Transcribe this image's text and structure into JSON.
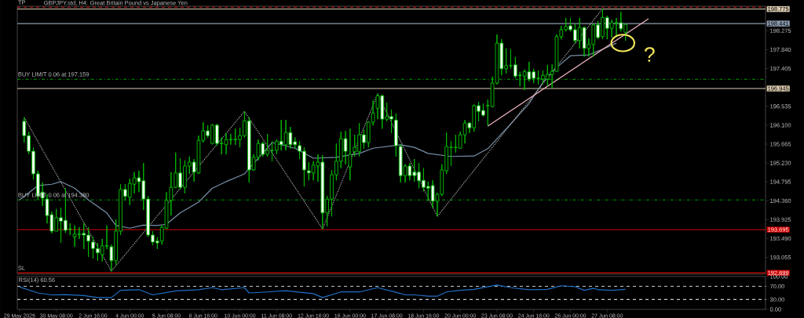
{
  "chart_data": [
    {
      "type": "candlestick",
      "title": "GBPJPY.std, H4:  Great Britain Pound vs Japanese Yen",
      "categories": [
        null,
        null,
        null,
        null,
        null,
        null,
        null,
        null,
        null,
        null,
        null,
        null,
        null,
        null,
        null,
        null,
        null,
        null,
        null,
        null,
        null,
        null,
        null,
        null,
        null,
        null,
        null,
        null,
        null,
        null,
        null,
        null,
        null,
        null,
        null,
        null,
        null,
        null,
        null,
        null,
        null,
        null,
        null,
        null,
        null,
        null,
        null,
        null,
        null,
        null,
        null,
        null,
        null,
        null,
        null,
        null,
        null,
        null,
        null,
        null,
        null,
        null,
        null,
        null,
        null,
        null,
        null,
        null,
        null,
        null,
        null,
        null,
        null,
        null,
        null,
        null,
        null,
        null,
        null,
        null,
        null,
        null,
        null,
        null,
        null,
        null,
        null,
        null,
        null,
        null,
        null,
        null,
        null,
        null,
        null,
        null,
        null,
        null,
        null,
        null,
        null,
        null,
        null,
        null,
        null,
        null,
        null,
        null,
        null,
        null,
        null,
        null,
        null,
        null,
        null,
        null,
        null,
        null,
        null,
        null,
        null,
        null,
        null,
        null,
        null,
        null,
        null,
        null,
        null,
        null,
        null,
        null,
        null,
        null,
        null,
        null,
        null,
        null,
        null,
        null,
        null,
        null,
        null,
        null,
        null,
        null,
        null,
        null,
        null,
        null,
        null,
        null,
        null,
        null,
        null,
        null,
        null,
        null,
        null,
        null,
        null,
        null,
        null
      ],
      "ohlc": [
        null,
        [
          196.19,
          196.28,
          195.7,
          195.86
        ],
        [
          195.86,
          195.95,
          195.43,
          195.5
        ],
        [
          195.5,
          195.59,
          194.85,
          194.98
        ],
        [
          194.98,
          195.05,
          194.38,
          194.47
        ],
        [
          194.56,
          194.78,
          194.24,
          194.42
        ],
        [
          194.4,
          194.51,
          193.84,
          194.02
        ],
        [
          194.04,
          194.11,
          193.61,
          193.66
        ],
        [
          193.66,
          194.17,
          193.66,
          193.97
        ],
        [
          193.97,
          194.2,
          193.39,
          193.89
        ],
        [
          193.91,
          194.65,
          193.62,
          193.68
        ],
        [
          193.71,
          193.84,
          193.57,
          193.7
        ],
        [
          193.53,
          193.79,
          193.3,
          193.59
        ],
        [
          193.59,
          193.75,
          193.48,
          193.59
        ],
        [
          193.61,
          193.84,
          193.25,
          193.57
        ],
        [
          193.57,
          193.75,
          193.07,
          193.43
        ],
        [
          193.41,
          193.53,
          193.03,
          193.26
        ],
        [
          193.26,
          193.39,
          192.98,
          193.16
        ],
        [
          193.12,
          193.48,
          192.96,
          193.32
        ],
        [
          193.32,
          193.79,
          193.25,
          193.32
        ],
        [
          193.3,
          193.35,
          192.74,
          192.98
        ],
        [
          192.98,
          193.93,
          192.89,
          193.66
        ],
        [
          193.66,
          194.74,
          193.57,
          194.62
        ],
        [
          194.62,
          194.74,
          194.38,
          194.46
        ],
        [
          194.44,
          194.87,
          194.26,
          194.76
        ],
        [
          194.74,
          195.02,
          194.53,
          194.89
        ],
        [
          194.89,
          195.05,
          194.56,
          194.8
        ],
        [
          194.82,
          195.23,
          194.15,
          194.4
        ],
        [
          194.4,
          194.47,
          193.53,
          193.57
        ],
        [
          193.57,
          193.66,
          193.34,
          193.41
        ],
        [
          193.43,
          193.52,
          193.25,
          193.39
        ],
        [
          193.43,
          193.79,
          193.35,
          193.75
        ],
        [
          193.73,
          194.56,
          193.71,
          194.37
        ],
        [
          194.37,
          195.02,
          194.02,
          194.67
        ],
        [
          194.67,
          195.47,
          194.65,
          195.0
        ],
        [
          195.0,
          195.34,
          194.62,
          194.67
        ],
        [
          194.67,
          195.29,
          194.53,
          195.16
        ],
        [
          195.16,
          195.38,
          194.98,
          195.25
        ],
        [
          195.25,
          195.32,
          194.8,
          195.02
        ],
        [
          195.0,
          195.86,
          194.98,
          195.75
        ],
        [
          195.75,
          196.17,
          195.7,
          195.97
        ],
        [
          195.97,
          196.1,
          195.81,
          195.86
        ],
        [
          195.68,
          196.13,
          195.66,
          196.1
        ],
        [
          196.1,
          196.13,
          195.63,
          195.68
        ],
        [
          195.68,
          195.82,
          195.43,
          195.68
        ],
        [
          195.65,
          195.92,
          195.43,
          195.77
        ],
        [
          195.77,
          195.9,
          195.65,
          195.77
        ],
        [
          195.77,
          196.02,
          195.65,
          195.77
        ],
        [
          195.77,
          196.04,
          195.59,
          195.86
        ],
        [
          195.86,
          196.42,
          195.81,
          196.2
        ],
        [
          196.2,
          196.28,
          194.78,
          195.07
        ],
        [
          195.07,
          195.43,
          195.05,
          195.36
        ],
        [
          195.36,
          195.77,
          195.29,
          195.68
        ],
        [
          195.68,
          195.72,
          195.38,
          195.43
        ],
        [
          195.43,
          195.9,
          195.38,
          195.52
        ],
        [
          195.52,
          195.73,
          195.27,
          195.52
        ],
        [
          195.52,
          195.77,
          195.43,
          195.73
        ],
        [
          195.73,
          196.22,
          195.52,
          195.65
        ],
        [
          195.65,
          196.22,
          195.52,
          195.93
        ],
        [
          195.93,
          196.06,
          195.56,
          195.65
        ],
        [
          195.72,
          195.82,
          195.56,
          195.65
        ],
        [
          195.63,
          195.73,
          195.32,
          195.5
        ],
        [
          195.5,
          195.59,
          194.69,
          195.07
        ],
        [
          195.05,
          195.25,
          194.83,
          195.0
        ],
        [
          195.0,
          195.27,
          194.83,
          195.18
        ],
        [
          195.16,
          195.43,
          194.8,
          195.25
        ],
        [
          195.25,
          195.41,
          193.71,
          194.08
        ],
        [
          194.08,
          194.47,
          193.77,
          194.4
        ],
        [
          194.4,
          195.07,
          194.0,
          194.96
        ],
        [
          194.96,
          195.68,
          194.83,
          195.27
        ],
        [
          195.27,
          195.95,
          195.11,
          195.79
        ],
        [
          195.79,
          195.97,
          195.2,
          195.5
        ],
        [
          195.14,
          196.02,
          194.83,
          195.43
        ],
        [
          195.49,
          195.88,
          195.38,
          195.59
        ],
        [
          195.49,
          196.15,
          195.38,
          195.88
        ],
        [
          195.88,
          196.0,
          195.56,
          195.7
        ],
        [
          195.7,
          196.19,
          195.59,
          196.17
        ],
        [
          196.17,
          196.67,
          196.1,
          196.38
        ],
        [
          196.49,
          196.82,
          196.24,
          196.78
        ],
        [
          196.78,
          196.8,
          196.02,
          196.24
        ],
        [
          196.24,
          196.62,
          196.19,
          196.3
        ],
        [
          196.3,
          196.46,
          195.92,
          196.24
        ],
        [
          196.22,
          196.37,
          195.38,
          195.63
        ],
        [
          195.61,
          195.65,
          194.78,
          194.94
        ],
        [
          194.94,
          195.2,
          194.78,
          195.16
        ],
        [
          195.16,
          195.23,
          194.83,
          194.94
        ],
        [
          195.02,
          195.32,
          194.8,
          194.94
        ],
        [
          195.02,
          195.23,
          194.65,
          194.82
        ],
        [
          194.83,
          195.11,
          194.58,
          194.67
        ],
        [
          194.69,
          194.8,
          194.35,
          194.65
        ],
        [
          194.71,
          194.83,
          194.2,
          194.35
        ],
        [
          194.35,
          194.54,
          194.0,
          194.51
        ],
        [
          194.51,
          195.2,
          194.47,
          195.07
        ],
        [
          195.05,
          195.93,
          194.98,
          195.61
        ],
        [
          195.59,
          195.73,
          195.16,
          195.59
        ],
        [
          195.59,
          195.88,
          195.47,
          195.59
        ],
        [
          195.57,
          195.95,
          195.56,
          195.88
        ],
        [
          195.88,
          196.22,
          195.68,
          196.15
        ],
        [
          196.15,
          196.17,
          195.92,
          196.04
        ],
        [
          196.04,
          196.58,
          195.95,
          196.55
        ],
        [
          196.55,
          196.64,
          196.19,
          196.42
        ],
        [
          196.44,
          196.6,
          196.3,
          196.33
        ],
        [
          196.55,
          196.69,
          196.1,
          196.55
        ],
        [
          196.53,
          197.22,
          196.51,
          197.07
        ],
        [
          197.07,
          198.19,
          197.04,
          197.99
        ],
        [
          197.99,
          198.08,
          197.25,
          197.4
        ],
        [
          197.4,
          197.87,
          197.29,
          197.47
        ],
        [
          197.47,
          197.85,
          197.4,
          197.47
        ],
        [
          197.49,
          197.67,
          197.18,
          197.23
        ],
        [
          197.25,
          197.33,
          197.0,
          197.25
        ],
        [
          197.23,
          197.38,
          196.91,
          197.33
        ],
        [
          197.33,
          197.56,
          197.11,
          197.16
        ],
        [
          197.33,
          197.4,
          197.07,
          197.18
        ],
        [
          197.18,
          197.36,
          197.04,
          197.18
        ],
        [
          197.16,
          197.36,
          197.04,
          197.25
        ],
        [
          197.16,
          197.49,
          197.0,
          197.27
        ],
        [
          197.27,
          197.5,
          196.96,
          197.34
        ],
        [
          197.34,
          198.19,
          197.33,
          198.14
        ],
        [
          198.14,
          198.39,
          198.08,
          198.3
        ],
        [
          198.3,
          198.57,
          198.26,
          198.37
        ],
        [
          198.39,
          198.57,
          198.26,
          198.3
        ],
        [
          198.3,
          198.44,
          197.99,
          198.05
        ],
        [
          198.05,
          198.57,
          197.87,
          198.35
        ],
        [
          198.35,
          198.37,
          197.68,
          197.87
        ],
        [
          197.87,
          198.1,
          197.68,
          197.96
        ],
        [
          197.96,
          198.44,
          197.68,
          198.41
        ],
        [
          198.41,
          198.5,
          198.08,
          198.12
        ],
        [
          198.14,
          198.78,
          198.08,
          198.58
        ],
        [
          198.58,
          198.62,
          198.08,
          198.33
        ],
        [
          198.33,
          198.53,
          198.12,
          198.46
        ],
        [
          198.46,
          198.57,
          198.17,
          198.46
        ],
        [
          198.46,
          198.71,
          198.26,
          198.32
        ],
        [
          198.24,
          198.44,
          198.05,
          198.42
        ],
        null,
        null,
        null,
        null,
        null,
        null,
        null,
        null,
        null,
        null,
        null,
        null,
        null,
        null,
        null,
        null,
        null,
        null,
        null,
        null,
        null,
        null,
        null,
        null,
        null,
        null,
        null,
        null,
        null,
        null
      ],
      "color": "#00c000",
      "colors": [
        null,
        "#ffffff",
        "#ffffff",
        "#ffffff",
        "#ffffff",
        "#ffffff",
        "#ffffff",
        "#ffffff",
        "#000000",
        "#ffffff",
        "#ffffff",
        "#ffffff",
        "#000000",
        "#000000",
        "#ffffff",
        "#ffffff",
        "#ffffff",
        "#ffffff",
        "#000000",
        "#000000",
        "#ffffff",
        "#000000",
        "#000000",
        "#ffffff",
        "#000000",
        "#000000",
        "#ffffff",
        "#ffffff",
        "#ffffff",
        "#ffffff",
        "#ffffff",
        "#000000",
        "#000000",
        "#000000",
        "#000000",
        "#ffffff",
        "#000000",
        "#000000",
        "#ffffff",
        "#000000",
        "#000000",
        "#ffffff",
        "#000000",
        "#ffffff",
        "#000000",
        "#000000",
        "#000000",
        "#000000",
        "#000000",
        "#000000",
        "#ffffff",
        "#000000",
        "#000000",
        "#ffffff",
        "#000000",
        "#000000",
        "#000000",
        "#ffffff",
        "#000000",
        "#ffffff",
        "#ffffff",
        "#ffffff",
        "#ffffff",
        "#ffffff",
        "#000000",
        "#000000",
        "#ffffff",
        "#000000",
        "#000000",
        "#000000",
        "#000000",
        "#ffffff",
        "#000000",
        "#000000",
        "#000000",
        "#ffffff",
        "#000000",
        "#000000",
        "#000000",
        "#ffffff",
        "#000000",
        "#ffffff",
        "#ffffff",
        "#ffffff",
        "#000000",
        "#ffffff",
        "#ffffff",
        "#ffffff",
        "#ffffff",
        "#ffffff",
        "#ffffff",
        "#000000",
        "#000000",
        "#000000",
        "#000000",
        "#000000",
        "#000000",
        "#000000",
        "#ffffff",
        "#000000",
        "#ffffff",
        "#ffffff",
        "#000000",
        "#000000",
        "#000000",
        "#ffffff",
        "#000000",
        "#000000",
        "#ffffff",
        "#000000",
        "#000000",
        "#ffffff",
        "#ffffff",
        "#000000",
        "#000000",
        "#000000",
        "#000000",
        "#000000",
        "#000000",
        "#000000",
        "#ffffff",
        "#ffffff",
        "#000000",
        "#ffffff",
        "#000000",
        "#000000",
        "#ffffff",
        "#000000",
        "#ffffff",
        "#000000",
        "#000000",
        "#ffffff",
        "#000000",
        null,
        null,
        null,
        null,
        null,
        null,
        null,
        null,
        null,
        null,
        null,
        null,
        null,
        null,
        null,
        null,
        null,
        null,
        null,
        null,
        null,
        null,
        null,
        null,
        null,
        null,
        null,
        null,
        null,
        null
      ],
      "ylim": [
        192.67,
        198.84
      ],
      "yticks": [
        {
          "value": 193.055,
          "label": "193.055"
        },
        {
          "value": 193.49,
          "label": "193.490"
        },
        {
          "value": 193.925,
          "label": "193.925"
        },
        {
          "value": 194.36,
          "label": "194.360"
        },
        {
          "value": 194.795,
          "label": "194.795"
        },
        {
          "value": 195.23,
          "label": "195.230"
        },
        {
          "value": 195.665,
          "label": "195.665"
        },
        {
          "value": 196.1,
          "label": "196.100"
        },
        {
          "value": 196.535,
          "label": "196.535"
        },
        {
          "value": 197.405,
          "label": "197.405"
        },
        {
          "value": 197.84,
          "label": "197.840"
        },
        {
          "value": 198.275,
          "label": "198.275"
        }
      ],
      "series": [
        {
          "type": "line",
          "color": "#7890a8",
          "values": [
            194.38,
            null,
            null,
            null,
            194.71,
            null,
            null,
            194.74,
            null,
            194.8,
            null,
            null,
            194.65,
            null,
            null,
            194.38,
            null,
            null,
            null,
            194.08,
            null,
            193.79,
            null,
            null,
            193.73,
            null,
            null,
            193.8,
            null,
            null,
            193.79,
            null,
            193.82,
            null,
            null,
            194.08,
            null,
            null,
            null,
            194.33,
            null,
            null,
            194.65,
            null,
            null,
            194.8,
            null,
            null,
            null,
            194.98,
            null,
            null,
            null,
            null,
            null,
            195.7,
            null,
            null,
            null,
            null,
            195.57,
            null,
            null,
            null,
            195.34,
            null,
            null,
            null,
            null,
            195.36,
            null,
            null,
            null,
            null,
            195.45,
            null,
            null,
            195.57,
            null,
            null,
            null,
            null,
            null,
            195.65,
            null,
            null,
            195.59,
            null,
            null,
            195.45,
            null,
            null,
            null,
            null,
            195.38,
            null,
            null,
            null,
            null,
            195.39,
            null,
            null,
            195.56,
            null,
            null,
            null,
            null,
            196.13,
            null,
            null,
            null,
            196.6,
            null,
            null,
            197.09,
            null,
            null,
            197.43,
            null,
            null,
            197.7,
            null,
            null,
            null,
            197.72,
            null,
            null,
            197.85,
            null,
            null,
            197.99,
            null,
            null,
            null,
            null,
            null,
            null,
            null,
            null,
            null,
            null,
            null,
            null,
            null,
            null,
            null,
            null,
            null,
            null,
            null,
            null,
            null,
            null,
            null,
            null,
            null,
            null,
            null,
            null,
            null,
            null,
            null,
            null
          ]
        },
        {
          "type": "line",
          "color": "#b0b0b0",
          "line_style": "dotted",
          "values": [
            null,
            196.28,
            null,
            null,
            null,
            null,
            null,
            null,
            null,
            null,
            null,
            null,
            null,
            null,
            null,
            null,
            null,
            null,
            null,
            null,
            192.74,
            null,
            null,
            null,
            null,
            null,
            null,
            null,
            null,
            null,
            null,
            null,
            null,
            null,
            null,
            null,
            null,
            null,
            null,
            null,
            null,
            null,
            null,
            null,
            null,
            null,
            null,
            null,
            null,
            196.42,
            null,
            null,
            null,
            null,
            null,
            null,
            null,
            null,
            null,
            null,
            null,
            null,
            null,
            null,
            null,
            null,
            193.71,
            null,
            null,
            null,
            null,
            null,
            null,
            null,
            null,
            null,
            null,
            null,
            196.82,
            null,
            null,
            null,
            null,
            null,
            null,
            null,
            null,
            null,
            null,
            null,
            null,
            194.0,
            null,
            null,
            null,
            null,
            null,
            null,
            null,
            null,
            null,
            null,
            null,
            null,
            null,
            null,
            null,
            null,
            null,
            null,
            null,
            null,
            null,
            null,
            null,
            null,
            null,
            null,
            null,
            null,
            null,
            null,
            null,
            null,
            null,
            null,
            null,
            198.78,
            null,
            null,
            null,
            null,
            null,
            null,
            null,
            null,
            null,
            null,
            null,
            null,
            null,
            null,
            null,
            null,
            null,
            null,
            null,
            null,
            null,
            null,
            null,
            null,
            null,
            null,
            null,
            null,
            null,
            null,
            null,
            null,
            null,
            null,
            null
          ]
        },
        {
          "type": "line",
          "color": "#f2b6c0",
          "values": [
            null,
            null,
            null,
            null,
            null,
            null,
            null,
            null,
            null,
            null,
            null,
            null,
            null,
            null,
            null,
            null,
            null,
            null,
            null,
            null,
            null,
            null,
            null,
            null,
            null,
            null,
            null,
            null,
            null,
            null,
            null,
            null,
            null,
            null,
            null,
            null,
            null,
            null,
            null,
            null,
            null,
            null,
            null,
            null,
            null,
            null,
            null,
            null,
            null,
            null,
            null,
            null,
            null,
            null,
            null,
            null,
            null,
            null,
            null,
            null,
            null,
            null,
            null,
            null,
            null,
            null,
            null,
            null,
            null,
            null,
            null,
            null,
            null,
            null,
            null,
            null,
            null,
            null,
            null,
            null,
            null,
            null,
            null,
            null,
            null,
            null,
            null,
            null,
            null,
            null,
            null,
            null,
            null,
            null,
            null,
            null,
            null,
            null,
            null,
            null,
            null,
            null,
            196.08,
            null,
            null,
            null,
            null,
            null,
            null,
            null,
            null,
            null,
            null,
            null,
            null,
            null,
            null,
            null,
            null,
            null,
            null,
            null,
            null,
            null,
            null,
            null,
            null,
            null,
            null,
            null,
            null,
            null,
            null,
            null,
            null,
            null,
            null,
            198.55,
            null,
            null,
            null,
            null,
            null,
            null,
            null,
            null,
            null,
            null,
            null,
            null,
            null,
            null,
            null,
            null,
            null,
            null,
            null,
            null,
            null,
            null,
            null,
            null,
            null
          ]
        }
      ],
      "ref_lines": [
        {
          "axis": "y",
          "value": 198.816,
          "color": "#d02020",
          "line_style": "dashed"
        },
        {
          "axis": "y",
          "value": 198.775,
          "label": "198.775",
          "color": "#dccbb0"
        },
        {
          "axis": "y",
          "value": 198.441,
          "label": "198.441",
          "color": "#8c9cb0"
        },
        {
          "axis": "y",
          "value": 197.159,
          "color": "#00a000",
          "line_style": "dashdot"
        },
        {
          "axis": "y",
          "value": 196.945,
          "label": "196.945",
          "color": "#dccbb0"
        },
        {
          "axis": "y",
          "value": 194.38,
          "color": "#00a000",
          "line_style": "dashdot"
        },
        {
          "axis": "y",
          "value": 193.695,
          "label": "193.695",
          "color": "#d00000"
        },
        {
          "axis": "y",
          "value": 192.699,
          "label": "192.699",
          "color": "#d00000"
        }
      ],
      "annotations": [
        {
          "text": "TP",
          "y": 198.816
        },
        {
          "text": "BUY LIMIT 0.06 at 197.159",
          "y": 197.159
        },
        {
          "text": "BUY LIMIT 0.06 at 194.380",
          "y": 194.38
        },
        {
          "text": "SL",
          "y": 192.699
        },
        "?"
      ]
    },
    {
      "type": "line",
      "title": "RSI(14) 60.56",
      "categories": [
        "29 May 2025",
        null,
        null,
        null,
        null,
        null,
        null,
        null,
        "30 May 08:00",
        null,
        null,
        null,
        null,
        null,
        null,
        null,
        "2 Jun 16:00",
        null,
        null,
        null,
        null,
        null,
        null,
        null,
        "4 Jun 00:00",
        null,
        null,
        null,
        null,
        null,
        null,
        null,
        "5 Jun 08:00",
        null,
        null,
        null,
        null,
        null,
        null,
        null,
        "6 Jun 16:00",
        null,
        null,
        null,
        null,
        null,
        null,
        null,
        "10 Jun 00:00",
        null,
        null,
        null,
        null,
        null,
        null,
        null,
        "11 Jun 08:00",
        null,
        null,
        null,
        null,
        null,
        null,
        null,
        "12 Jun 16:00",
        null,
        null,
        null,
        null,
        null,
        null,
        null,
        "16 Jun 00:00",
        null,
        null,
        null,
        null,
        null,
        null,
        null,
        "17 Jun 08:00",
        null,
        null,
        null,
        null,
        null,
        null,
        null,
        "18 Jun 16:00",
        null,
        null,
        null,
        null,
        null,
        null,
        null,
        "20 Jun 00:00",
        null,
        null,
        null,
        null,
        null,
        null,
        null,
        "23 Jun 08:00",
        null,
        null,
        null,
        null,
        null,
        null,
        null,
        "24 Jun 16:00",
        null,
        null,
        null,
        null,
        null,
        null,
        null,
        "26 Jun 00:00",
        null,
        null,
        null,
        null,
        null,
        null,
        null,
        "27 Jun 08:00",
        null,
        null,
        null,
        null,
        null,
        null,
        null,
        null,
        null,
        null,
        null,
        null,
        null,
        null,
        null,
        null,
        null,
        null,
        null,
        null,
        null,
        null,
        null,
        null,
        null,
        null,
        null,
        null,
        null,
        null,
        null,
        null,
        null,
        null
      ],
      "series": [
        {
          "color": "#2070c8",
          "values": [
            68,
            null,
            null,
            null,
            50,
            null,
            null,
            44,
            null,
            null,
            45,
            null,
            null,
            null,
            42,
            null,
            null,
            36,
            null,
            null,
            36,
            null,
            58,
            null,
            null,
            null,
            60,
            null,
            null,
            44,
            null,
            null,
            null,
            null,
            56,
            null,
            null,
            null,
            null,
            60,
            null,
            null,
            66,
            null,
            60,
            null,
            null,
            null,
            null,
            66,
            50,
            null,
            null,
            null,
            53,
            null,
            null,
            null,
            57,
            null,
            null,
            52,
            null,
            null,
            48,
            null,
            36,
            null,
            null,
            null,
            53,
            null,
            null,
            null,
            53,
            null,
            null,
            null,
            66,
            null,
            null,
            null,
            52,
            null,
            44,
            null,
            44,
            null,
            null,
            40,
            null,
            40,
            null,
            53,
            null,
            null,
            58,
            null,
            null,
            61,
            null,
            null,
            null,
            null,
            74,
            null,
            null,
            66,
            null,
            null,
            null,
            60,
            null,
            null,
            null,
            61,
            null,
            null,
            72,
            null,
            null,
            69,
            null,
            58,
            null,
            64,
            60,
            null,
            null,
            58,
            null,
            null,
            61,
            null,
            null,
            null,
            null,
            null,
            null,
            null,
            null,
            null,
            null,
            null,
            null,
            null,
            null,
            null,
            null,
            null,
            null,
            null,
            null,
            null,
            null,
            null,
            null,
            null,
            null,
            null,
            null,
            null,
            null
          ]
        }
      ],
      "ylim": [
        0,
        100
      ],
      "yticks": [
        {
          "value": 0,
          "label": "0.00"
        },
        {
          "value": 30,
          "label": "30.00"
        },
        {
          "value": 70,
          "label": "70.00"
        },
        {
          "value": 100,
          "label": "100.00"
        }
      ],
      "ref_lines": [
        {
          "axis": "y",
          "value": 30,
          "color": "#c8c8c8",
          "line_style": "dashed"
        },
        {
          "axis": "y",
          "value": 70,
          "color": "#c8c8c8",
          "line_style": "dashed"
        }
      ]
    }
  ]
}
